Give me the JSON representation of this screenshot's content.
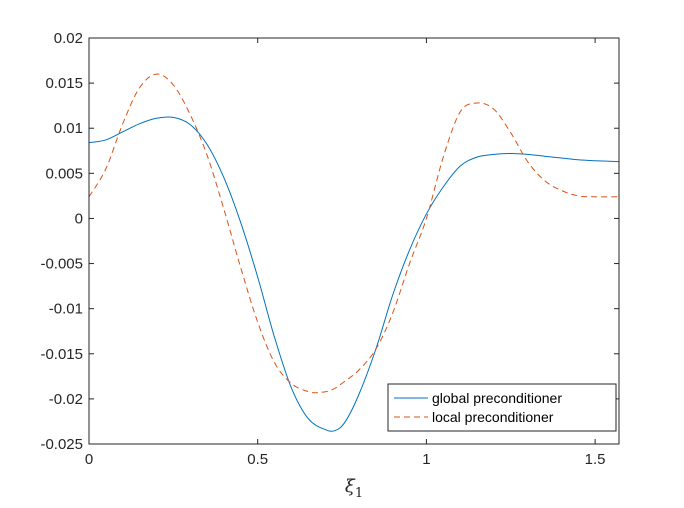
{
  "chart_data": {
    "type": "line",
    "title": "",
    "xlabel": "ξ",
    "xlabel_subscript": "1",
    "ylabel": "",
    "xlim": [
      0,
      1.5708
    ],
    "ylim": [
      -0.025,
      0.02
    ],
    "xticks": [
      0,
      0.5,
      1,
      1.5
    ],
    "xtick_labels": [
      "0",
      "0.5",
      "1",
      "1.5"
    ],
    "yticks": [
      -0.025,
      -0.02,
      -0.015,
      -0.01,
      -0.005,
      0,
      0.005,
      0.01,
      0.015,
      0.02
    ],
    "ytick_labels": [
      "-0.025",
      "-0.02",
      "-0.015",
      "-0.01",
      "-0.005",
      "0",
      "0.005",
      "0.01",
      "0.015",
      "0.02"
    ],
    "grid": false,
    "legend_position": "bottom-right",
    "series": [
      {
        "name": "global preconditioner",
        "color": "#0072BD",
        "dash": "solid",
        "x": [
          0,
          0.05,
          0.1,
          0.15,
          0.2,
          0.25,
          0.3,
          0.35,
          0.4,
          0.45,
          0.5,
          0.55,
          0.6,
          0.65,
          0.7,
          0.73,
          0.76,
          0.8,
          0.85,
          0.9,
          0.95,
          1.0,
          1.05,
          1.1,
          1.15,
          1.2,
          1.25,
          1.3,
          1.35,
          1.4,
          1.45,
          1.5,
          1.5708
        ],
        "y": [
          0.0084,
          0.0087,
          0.0096,
          0.0105,
          0.0111,
          0.0112,
          0.0104,
          0.0082,
          0.0045,
          -0.0005,
          -0.0065,
          -0.0132,
          -0.0188,
          -0.0222,
          -0.0234,
          -0.0235,
          -0.0225,
          -0.0195,
          -0.0145,
          -0.0085,
          -0.0035,
          0.0005,
          0.0035,
          0.0058,
          0.0068,
          0.0071,
          0.0072,
          0.0071,
          0.0069,
          0.0067,
          0.0065,
          0.0064,
          0.0063
        ]
      },
      {
        "name": "local preconditioner",
        "color": "#D95319",
        "dash": "dashed",
        "x": [
          0,
          0.05,
          0.1,
          0.15,
          0.2,
          0.25,
          0.3,
          0.35,
          0.4,
          0.45,
          0.5,
          0.55,
          0.6,
          0.65,
          0.68,
          0.72,
          0.76,
          0.8,
          0.85,
          0.9,
          0.95,
          1.0,
          1.05,
          1.1,
          1.15,
          1.2,
          1.25,
          1.3,
          1.35,
          1.4,
          1.45,
          1.5,
          1.5708
        ],
        "y": [
          0.0024,
          0.0055,
          0.0105,
          0.0145,
          0.016,
          0.0148,
          0.0115,
          0.007,
          0.001,
          -0.0055,
          -0.0115,
          -0.016,
          -0.0183,
          -0.0192,
          -0.0193,
          -0.019,
          -0.018,
          -0.0168,
          -0.0145,
          -0.0105,
          -0.005,
          0.0,
          0.0068,
          0.0118,
          0.0128,
          0.0121,
          0.0095,
          0.0063,
          0.0042,
          0.0031,
          0.0025,
          0.0024,
          0.0024
        ]
      }
    ]
  }
}
